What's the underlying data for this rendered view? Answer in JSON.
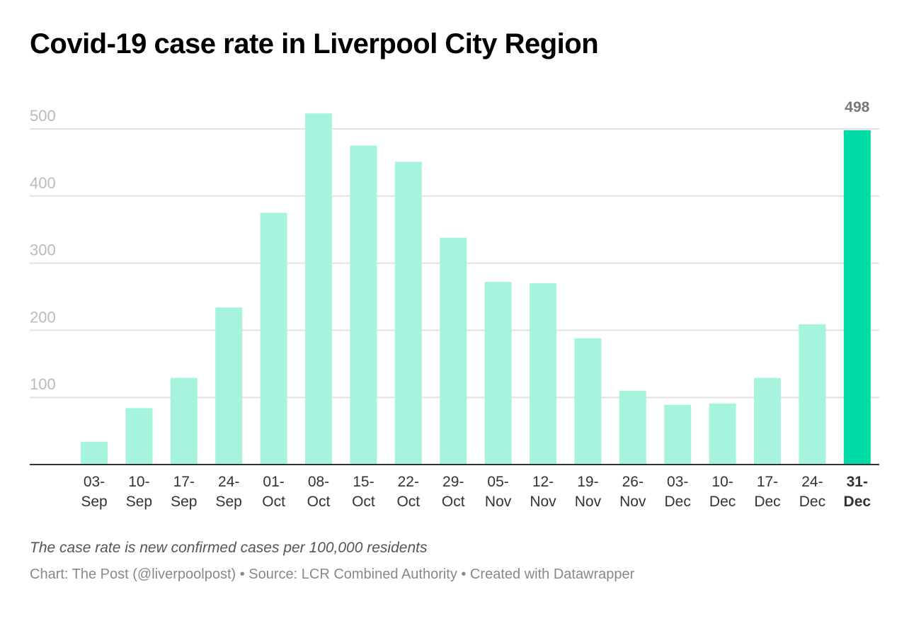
{
  "chart_data": {
    "type": "bar",
    "title": "Covid-19 case rate in Liverpool City Region",
    "categories": [
      [
        "03-",
        "Sep"
      ],
      [
        "10-",
        "Sep"
      ],
      [
        "17-",
        "Sep"
      ],
      [
        "24-",
        "Sep"
      ],
      [
        "01-",
        "Oct"
      ],
      [
        "08-",
        "Oct"
      ],
      [
        "15-",
        "Oct"
      ],
      [
        "22-",
        "Oct"
      ],
      [
        "29-",
        "Oct"
      ],
      [
        "05-",
        "Nov"
      ],
      [
        "12-",
        "Nov"
      ],
      [
        "19-",
        "Nov"
      ],
      [
        "26-",
        "Nov"
      ],
      [
        "03-",
        "Dec"
      ],
      [
        "10-",
        "Dec"
      ],
      [
        "17-",
        "Dec"
      ],
      [
        "24-",
        "Dec"
      ],
      [
        "31-",
        "Dec"
      ]
    ],
    "values": [
      34,
      84,
      129,
      234,
      375,
      523,
      475,
      451,
      338,
      272,
      270,
      188,
      110,
      89,
      91,
      129,
      209,
      498
    ],
    "ylim": [
      0,
      550
    ],
    "yticks": [
      100,
      200,
      300,
      400,
      500
    ],
    "grid": true,
    "highlight_index": 17,
    "highlight_label": "498",
    "colors": {
      "bar": "#a6f3de",
      "highlight": "#00dca6",
      "grid": "#e2e2e2",
      "axis": "#333333"
    },
    "xlabel": "",
    "ylabel": ""
  },
  "footer": {
    "note": "The case rate is new confirmed cases per 100,000 residents",
    "credit": "Chart: The Post (@liverpoolpost) • Source: LCR Combined Authority • Created with Datawrapper"
  }
}
